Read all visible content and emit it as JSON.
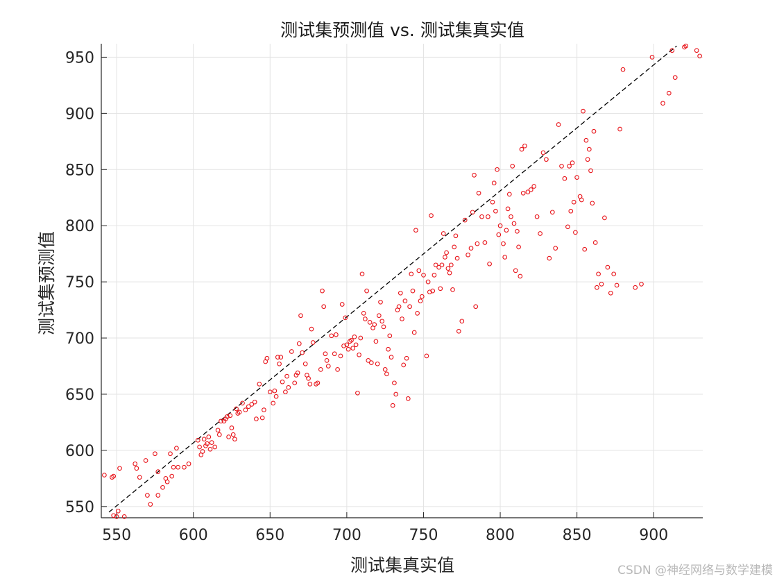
{
  "chart_data": {
    "type": "scatter",
    "title": "测试集预测值 vs. 测试集真实值",
    "xlabel": "测试集真实值",
    "ylabel": "测试集预测值",
    "xlim": [
      540,
      932
    ],
    "ylim": [
      540,
      962
    ],
    "xticks": [
      550,
      600,
      650,
      700,
      750,
      800,
      850,
      900
    ],
    "yticks": [
      550,
      600,
      650,
      700,
      750,
      800,
      850,
      900,
      950
    ],
    "grid": true,
    "legend": "none",
    "marker_color": "#e8141a",
    "reference_line": {
      "from": [
        545,
        545
      ],
      "to": [
        915,
        960
      ],
      "color": "#000000",
      "style": "dashed"
    },
    "points": [
      [
        542,
        578
      ],
      [
        547,
        576
      ],
      [
        548,
        577
      ],
      [
        548,
        542
      ],
      [
        550,
        541
      ],
      [
        551,
        546
      ],
      [
        552,
        584
      ],
      [
        555,
        541
      ],
      [
        562,
        588
      ],
      [
        563,
        584
      ],
      [
        565,
        576
      ],
      [
        569,
        591
      ],
      [
        570,
        560
      ],
      [
        572,
        552
      ],
      [
        575,
        597
      ],
      [
        577,
        581
      ],
      [
        577,
        560
      ],
      [
        580,
        567
      ],
      [
        582,
        575
      ],
      [
        583,
        572
      ],
      [
        585,
        597
      ],
      [
        586,
        577
      ],
      [
        587,
        585
      ],
      [
        589,
        602
      ],
      [
        590,
        585
      ],
      [
        594,
        585
      ],
      [
        597,
        588
      ],
      [
        603,
        609
      ],
      [
        604,
        603
      ],
      [
        605,
        596
      ],
      [
        606,
        599
      ],
      [
        607,
        610
      ],
      [
        608,
        604
      ],
      [
        609,
        606
      ],
      [
        610,
        612
      ],
      [
        611,
        601
      ],
      [
        612,
        607
      ],
      [
        614,
        603
      ],
      [
        616,
        618
      ],
      [
        617,
        614
      ],
      [
        618,
        626
      ],
      [
        620,
        626
      ],
      [
        621,
        628
      ],
      [
        622,
        630
      ],
      [
        623,
        612
      ],
      [
        624,
        631
      ],
      [
        625,
        620
      ],
      [
        626,
        614
      ],
      [
        627,
        610
      ],
      [
        628,
        637
      ],
      [
        629,
        633
      ],
      [
        630,
        634
      ],
      [
        632,
        642
      ],
      [
        634,
        636
      ],
      [
        636,
        639
      ],
      [
        638,
        641
      ],
      [
        640,
        643
      ],
      [
        641,
        628
      ],
      [
        643,
        659
      ],
      [
        645,
        629
      ],
      [
        646,
        636
      ],
      [
        647,
        679
      ],
      [
        648,
        682
      ],
      [
        650,
        652
      ],
      [
        652,
        642
      ],
      [
        653,
        653
      ],
      [
        654,
        648
      ],
      [
        655,
        683
      ],
      [
        656,
        677
      ],
      [
        657,
        683
      ],
      [
        658,
        661
      ],
      [
        660,
        652
      ],
      [
        661,
        666
      ],
      [
        662,
        656
      ],
      [
        664,
        688
      ],
      [
        666,
        660
      ],
      [
        667,
        667
      ],
      [
        668,
        669
      ],
      [
        669,
        695
      ],
      [
        670,
        720
      ],
      [
        671,
        687
      ],
      [
        673,
        677
      ],
      [
        674,
        667
      ],
      [
        675,
        664
      ],
      [
        676,
        659
      ],
      [
        677,
        708
      ],
      [
        678,
        696
      ],
      [
        680,
        659
      ],
      [
        681,
        660
      ],
      [
        683,
        672
      ],
      [
        684,
        742
      ],
      [
        685,
        728
      ],
      [
        686,
        686
      ],
      [
        687,
        680
      ],
      [
        688,
        675
      ],
      [
        690,
        702
      ],
      [
        692,
        686
      ],
      [
        693,
        703
      ],
      [
        694,
        672
      ],
      [
        696,
        684
      ],
      [
        697,
        730
      ],
      [
        698,
        693
      ],
      [
        699,
        718
      ],
      [
        700,
        694
      ],
      [
        701,
        690
      ],
      [
        702,
        697
      ],
      [
        703,
        698
      ],
      [
        704,
        691
      ],
      [
        705,
        701
      ],
      [
        706,
        694
      ],
      [
        707,
        651
      ],
      [
        708,
        685
      ],
      [
        709,
        700
      ],
      [
        710,
        757
      ],
      [
        711,
        722
      ],
      [
        712,
        717
      ],
      [
        713,
        742
      ],
      [
        714,
        680
      ],
      [
        715,
        714
      ],
      [
        716,
        678
      ],
      [
        717,
        709
      ],
      [
        718,
        712
      ],
      [
        719,
        697
      ],
      [
        720,
        677
      ],
      [
        721,
        720
      ],
      [
        722,
        732
      ],
      [
        723,
        715
      ],
      [
        724,
        710
      ],
      [
        725,
        672
      ],
      [
        726,
        668
      ],
      [
        727,
        690
      ],
      [
        728,
        702
      ],
      [
        729,
        683
      ],
      [
        730,
        640
      ],
      [
        731,
        660
      ],
      [
        732,
        650
      ],
      [
        733,
        725
      ],
      [
        734,
        728
      ],
      [
        735,
        740
      ],
      [
        736,
        717
      ],
      [
        737,
        676
      ],
      [
        738,
        733
      ],
      [
        739,
        682
      ],
      [
        740,
        646
      ],
      [
        741,
        728
      ],
      [
        742,
        757
      ],
      [
        743,
        742
      ],
      [
        744,
        705
      ],
      [
        745,
        796
      ],
      [
        746,
        722
      ],
      [
        747,
        760
      ],
      [
        748,
        733
      ],
      [
        749,
        737
      ],
      [
        750,
        756
      ],
      [
        752,
        684
      ],
      [
        753,
        750
      ],
      [
        754,
        741
      ],
      [
        755,
        809
      ],
      [
        756,
        742
      ],
      [
        757,
        756
      ],
      [
        758,
        765
      ],
      [
        760,
        763
      ],
      [
        761,
        744
      ],
      [
        762,
        765
      ],
      [
        763,
        793
      ],
      [
        764,
        772
      ],
      [
        765,
        776
      ],
      [
        766,
        762
      ],
      [
        767,
        758
      ],
      [
        768,
        765
      ],
      [
        769,
        743
      ],
      [
        770,
        781
      ],
      [
        771,
        791
      ],
      [
        772,
        771
      ],
      [
        773,
        706
      ],
      [
        775,
        715
      ],
      [
        777,
        805
      ],
      [
        779,
        774
      ],
      [
        781,
        780
      ],
      [
        782,
        812
      ],
      [
        783,
        845
      ],
      [
        784,
        728
      ],
      [
        785,
        784
      ],
      [
        786,
        829
      ],
      [
        788,
        808
      ],
      [
        790,
        785
      ],
      [
        792,
        808
      ],
      [
        793,
        766
      ],
      [
        795,
        821
      ],
      [
        796,
        838
      ],
      [
        797,
        813
      ],
      [
        798,
        850
      ],
      [
        799,
        792
      ],
      [
        800,
        800
      ],
      [
        802,
        784
      ],
      [
        803,
        772
      ],
      [
        804,
        796
      ],
      [
        805,
        815
      ],
      [
        806,
        828
      ],
      [
        807,
        808
      ],
      [
        808,
        853
      ],
      [
        809,
        802
      ],
      [
        810,
        760
      ],
      [
        811,
        795
      ],
      [
        812,
        781
      ],
      [
        813,
        755
      ],
      [
        814,
        868
      ],
      [
        815,
        829
      ],
      [
        816,
        871
      ],
      [
        818,
        830
      ],
      [
        820,
        832
      ],
      [
        822,
        835
      ],
      [
        824,
        808
      ],
      [
        826,
        793
      ],
      [
        828,
        865
      ],
      [
        830,
        859
      ],
      [
        832,
        771
      ],
      [
        834,
        812
      ],
      [
        836,
        780
      ],
      [
        838,
        890
      ],
      [
        840,
        853
      ],
      [
        842,
        842
      ],
      [
        844,
        799
      ],
      [
        845,
        853
      ],
      [
        846,
        813
      ],
      [
        847,
        856
      ],
      [
        848,
        821
      ],
      [
        849,
        794
      ],
      [
        850,
        843
      ],
      [
        852,
        826
      ],
      [
        853,
        823
      ],
      [
        854,
        902
      ],
      [
        855,
        779
      ],
      [
        856,
        876
      ],
      [
        857,
        859
      ],
      [
        858,
        868
      ],
      [
        859,
        849
      ],
      [
        860,
        820
      ],
      [
        861,
        884
      ],
      [
        862,
        785
      ],
      [
        863,
        745
      ],
      [
        864,
        757
      ],
      [
        866,
        748
      ],
      [
        868,
        807
      ],
      [
        870,
        763
      ],
      [
        872,
        740
      ],
      [
        874,
        757
      ],
      [
        876,
        747
      ],
      [
        878,
        886
      ],
      [
        880,
        939
      ],
      [
        888,
        745
      ],
      [
        892,
        748
      ],
      [
        899,
        950
      ],
      [
        906,
        909
      ],
      [
        910,
        918
      ],
      [
        912,
        956
      ],
      [
        914,
        932
      ],
      [
        920,
        959
      ],
      [
        921,
        960
      ],
      [
        928,
        956
      ],
      [
        930,
        951
      ]
    ]
  },
  "watermark": "CSDN @神经网络与数学建模"
}
